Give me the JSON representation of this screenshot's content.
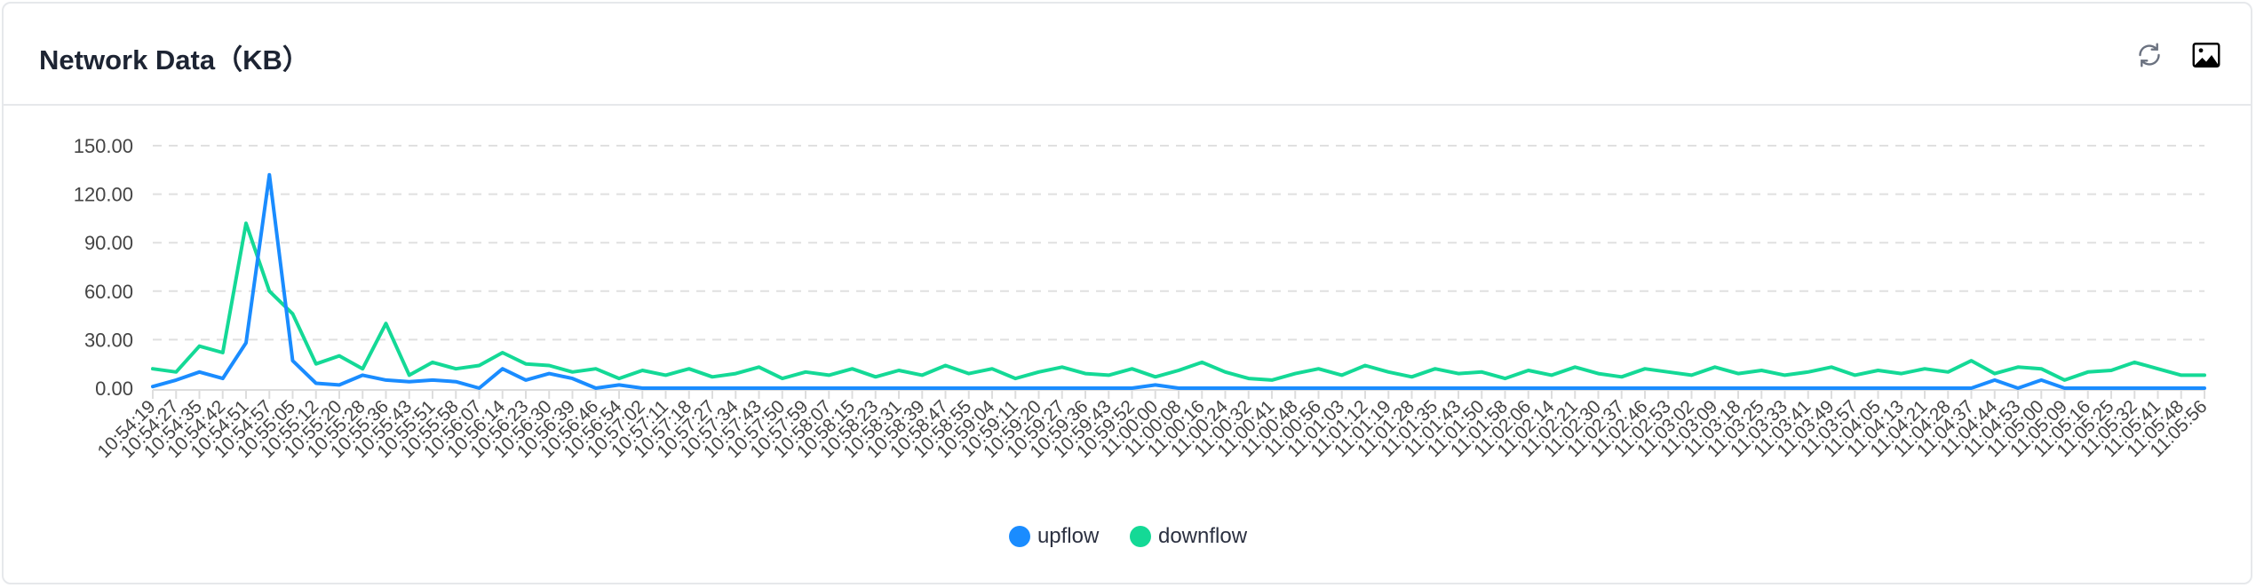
{
  "header": {
    "title": "Network Data（KB）",
    "icons": [
      "refresh-icon",
      "save-image-icon"
    ]
  },
  "colors": {
    "upflow": "#1a8cff",
    "downflow": "#14d996",
    "grid": "#e0e0e0",
    "axis_text": "#444"
  },
  "chart_data": {
    "type": "line",
    "title": "Network Data（KB）",
    "xlabel": "",
    "ylabel": "",
    "ylim": [
      0,
      150
    ],
    "yticks": [
      "0.00",
      "30.00",
      "60.00",
      "90.00",
      "120.00",
      "150.00"
    ],
    "grid": "horizontal dashed",
    "legend": "bottom-center",
    "categories": [
      "10:54:19",
      "10:54:27",
      "10:54:35",
      "10:54:42",
      "10:54:51",
      "10:54:57",
      "10:55:05",
      "10:55:12",
      "10:55:20",
      "10:55:28",
      "10:55:36",
      "10:55:43",
      "10:55:51",
      "10:55:58",
      "10:56:07",
      "10:56:14",
      "10:56:23",
      "10:56:30",
      "10:56:39",
      "10:56:46",
      "10:56:54",
      "10:57:02",
      "10:57:11",
      "10:57:18",
      "10:57:27",
      "10:57:34",
      "10:57:43",
      "10:57:50",
      "10:57:59",
      "10:58:07",
      "10:58:15",
      "10:58:23",
      "10:58:31",
      "10:58:39",
      "10:58:47",
      "10:58:55",
      "10:59:04",
      "10:59:11",
      "10:59:20",
      "10:59:27",
      "10:59:36",
      "10:59:43",
      "10:59:52",
      "11:00:00",
      "11:00:08",
      "11:00:16",
      "11:00:24",
      "11:00:32",
      "11:00:41",
      "11:00:48",
      "11:00:56",
      "11:01:03",
      "11:01:12",
      "11:01:19",
      "11:01:28",
      "11:01:35",
      "11:01:43",
      "11:01:50",
      "11:01:58",
      "11:02:06",
      "11:02:14",
      "11:02:21",
      "11:02:30",
      "11:02:37",
      "11:02:46",
      "11:02:53",
      "11:03:02",
      "11:03:09",
      "11:03:18",
      "11:03:25",
      "11:03:33",
      "11:03:41",
      "11:03:49",
      "11:03:57",
      "11:04:05",
      "11:04:13",
      "11:04:21",
      "11:04:28",
      "11:04:37",
      "11:04:44",
      "11:04:53",
      "11:05:00",
      "11:05:09",
      "11:05:16",
      "11:05:25",
      "11:05:32",
      "11:05:41",
      "11:05:48",
      "11:05:56"
    ],
    "series": [
      {
        "name": "upflow",
        "values": [
          1,
          5,
          10,
          6,
          28,
          132,
          17,
          3,
          2,
          8,
          5,
          4,
          5,
          4,
          0,
          12,
          5,
          9,
          6,
          0,
          2,
          0,
          0,
          0,
          0,
          0,
          0,
          0,
          0,
          0,
          0,
          0,
          0,
          0,
          0,
          0,
          0,
          0,
          0,
          0,
          0,
          0,
          0,
          2,
          0,
          0,
          0,
          0,
          0,
          0,
          0,
          0,
          0,
          0,
          0,
          0,
          0,
          0,
          0,
          0,
          0,
          0,
          0,
          0,
          0,
          0,
          0,
          0,
          0,
          0,
          0,
          0,
          0,
          0,
          0,
          0,
          0,
          0,
          0,
          5,
          0,
          5,
          0,
          0,
          0,
          0,
          0,
          0,
          0
        ]
      },
      {
        "name": "downflow",
        "values": [
          12,
          10,
          26,
          22,
          102,
          60,
          46,
          15,
          20,
          12,
          40,
          8,
          16,
          12,
          14,
          22,
          15,
          14,
          10,
          12,
          6,
          11,
          8,
          12,
          7,
          9,
          13,
          6,
          10,
          8,
          12,
          7,
          11,
          8,
          14,
          9,
          12,
          6,
          10,
          13,
          9,
          8,
          12,
          7,
          11,
          16,
          10,
          6,
          5,
          9,
          12,
          8,
          14,
          10,
          7,
          12,
          9,
          10,
          6,
          11,
          8,
          13,
          9,
          7,
          12,
          10,
          8,
          13,
          9,
          11,
          8,
          10,
          13,
          8,
          11,
          9,
          12,
          10,
          17,
          9,
          13,
          12,
          5,
          10,
          11,
          16,
          12,
          8,
          8
        ]
      }
    ]
  }
}
